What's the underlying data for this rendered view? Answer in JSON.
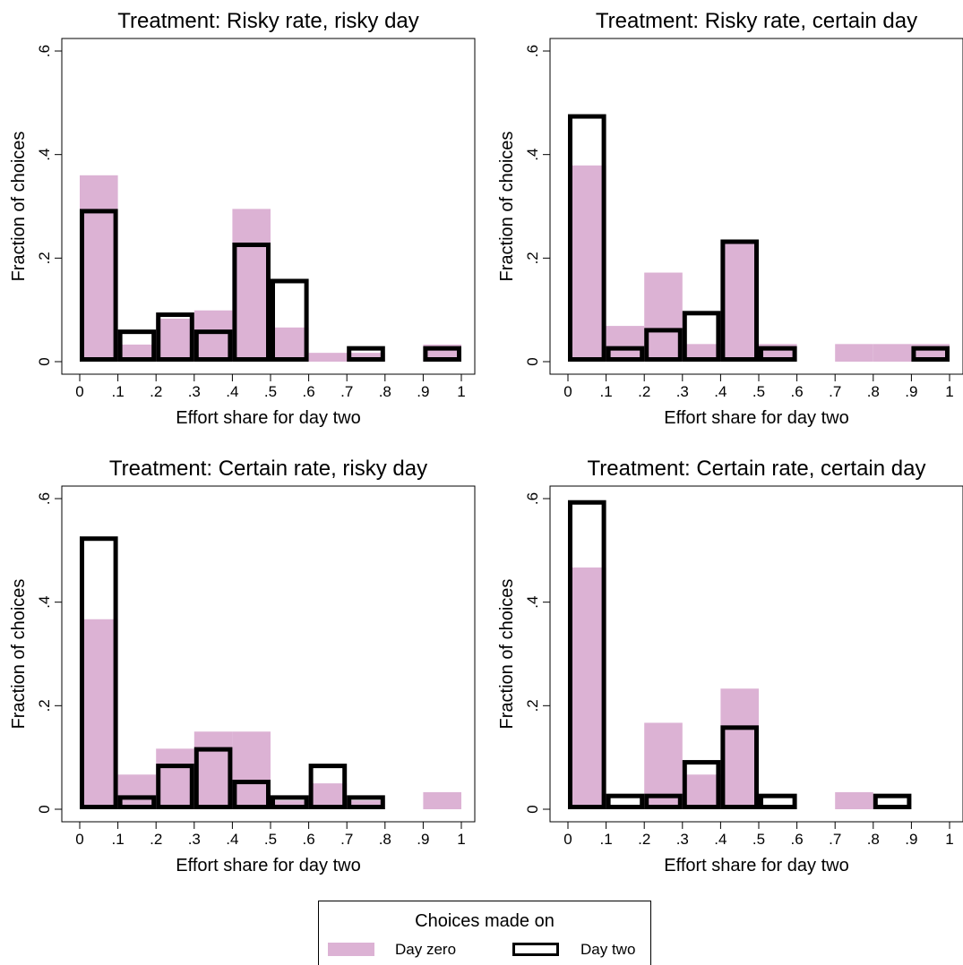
{
  "legend": {
    "title": "Choices made on",
    "items": [
      {
        "label": "Day zero",
        "style": "fill",
        "color": "#dcb2d4"
      },
      {
        "label": "Day two",
        "style": "outline",
        "color": "#000000"
      }
    ]
  },
  "chart_data": [
    {
      "type": "bar",
      "title": "Treatment: Risky rate, risky day",
      "xlabel": "Effort share for day two",
      "ylabel": "Fraction of choices",
      "xlim": [
        0,
        1
      ],
      "ylim": [
        0,
        0.6
      ],
      "xticks": [
        "0",
        ".1",
        ".2",
        ".3",
        ".4",
        ".5",
        ".6",
        ".7",
        ".8",
        ".9",
        "1"
      ],
      "yticks": [
        "0",
        ".2",
        ".4",
        ".6"
      ],
      "bins": [
        [
          0,
          0.1
        ],
        [
          0.1,
          0.2
        ],
        [
          0.2,
          0.3
        ],
        [
          0.3,
          0.4
        ],
        [
          0.4,
          0.5
        ],
        [
          0.5,
          0.6
        ],
        [
          0.6,
          0.7
        ],
        [
          0.7,
          0.8
        ],
        [
          0.8,
          0.9
        ],
        [
          0.9,
          1.0
        ]
      ],
      "series": [
        {
          "name": "Day zero",
          "values": [
            0.36,
            0.033,
            0.083,
            0.099,
            0.295,
            0.066,
            0.017,
            0.017,
            0,
            0.033
          ]
        },
        {
          "name": "Day two",
          "values": [
            0.295,
            0.062,
            0.095,
            0.062,
            0.23,
            0.16,
            0,
            0.03,
            0,
            0.03
          ]
        }
      ]
    },
    {
      "type": "bar",
      "title": "Treatment: Risky rate, certain day",
      "xlabel": "Effort share for day two",
      "ylabel": "Fraction of choices",
      "xlim": [
        0,
        1
      ],
      "ylim": [
        0,
        0.6
      ],
      "xticks": [
        "0",
        ".1",
        ".2",
        ".3",
        ".4",
        ".5",
        ".6",
        ".7",
        ".8",
        ".9",
        "1"
      ],
      "yticks": [
        "0",
        ".2",
        ".4",
        ".6"
      ],
      "bins": [
        [
          0,
          0.1
        ],
        [
          0.1,
          0.2
        ],
        [
          0.2,
          0.3
        ],
        [
          0.3,
          0.4
        ],
        [
          0.4,
          0.5
        ],
        [
          0.5,
          0.6
        ],
        [
          0.6,
          0.7
        ],
        [
          0.7,
          0.8
        ],
        [
          0.8,
          0.9
        ],
        [
          0.9,
          1.0
        ]
      ],
      "series": [
        {
          "name": "Day zero",
          "values": [
            0.379,
            0.069,
            0.172,
            0.034,
            0.236,
            0.034,
            0,
            0.034,
            0.034,
            0.034
          ]
        },
        {
          "name": "Day two",
          "values": [
            0.478,
            0.03,
            0.065,
            0.098,
            0.236,
            0.03,
            0,
            0,
            0,
            0.03
          ]
        }
      ]
    },
    {
      "type": "bar",
      "title": "Treatment: Certain rate, risky day",
      "xlabel": "Effort share for day two",
      "ylabel": "Fraction of choices",
      "xlim": [
        0,
        1
      ],
      "ylim": [
        0,
        0.6
      ],
      "xticks": [
        "0",
        ".1",
        ".2",
        ".3",
        ".4",
        ".5",
        ".6",
        ".7",
        ".8",
        ".9",
        "1"
      ],
      "yticks": [
        "0",
        ".2",
        ".4",
        ".6"
      ],
      "bins": [
        [
          0,
          0.1
        ],
        [
          0.1,
          0.2
        ],
        [
          0.2,
          0.3
        ],
        [
          0.3,
          0.4
        ],
        [
          0.4,
          0.5
        ],
        [
          0.5,
          0.6
        ],
        [
          0.6,
          0.7
        ],
        [
          0.7,
          0.8
        ],
        [
          0.8,
          0.9
        ],
        [
          0.9,
          1.0
        ]
      ],
      "series": [
        {
          "name": "Day zero",
          "values": [
            0.367,
            0.067,
            0.117,
            0.15,
            0.15,
            0.017,
            0.05,
            0.017,
            0,
            0.033
          ]
        },
        {
          "name": "Day two",
          "values": [
            0.527,
            0.027,
            0.088,
            0.12,
            0.057,
            0.027,
            0.088,
            0.027,
            0,
            0
          ]
        }
      ]
    },
    {
      "type": "bar",
      "title": "Treatment: Certain rate, certain day",
      "xlabel": "Effort share for day two",
      "ylabel": "Fraction of choices",
      "xlim": [
        0,
        1
      ],
      "ylim": [
        0,
        0.6
      ],
      "xticks": [
        "0",
        ".1",
        ".2",
        ".3",
        ".4",
        ".5",
        ".6",
        ".7",
        ".8",
        ".9",
        "1"
      ],
      "yticks": [
        "0",
        ".2",
        ".4",
        ".6"
      ],
      "bins": [
        [
          0,
          0.1
        ],
        [
          0.1,
          0.2
        ],
        [
          0.2,
          0.3
        ],
        [
          0.3,
          0.4
        ],
        [
          0.4,
          0.5
        ],
        [
          0.5,
          0.6
        ],
        [
          0.6,
          0.7
        ],
        [
          0.7,
          0.8
        ],
        [
          0.8,
          0.9
        ],
        [
          0.9,
          1.0
        ]
      ],
      "series": [
        {
          "name": "Day zero",
          "values": [
            0.467,
            0,
            0.167,
            0.067,
            0.233,
            0,
            0,
            0.033,
            0,
            0
          ]
        },
        {
          "name": "Day two",
          "values": [
            0.597,
            0.03,
            0.03,
            0.095,
            0.162,
            0.03,
            0,
            0,
            0.03,
            0
          ]
        }
      ]
    }
  ]
}
